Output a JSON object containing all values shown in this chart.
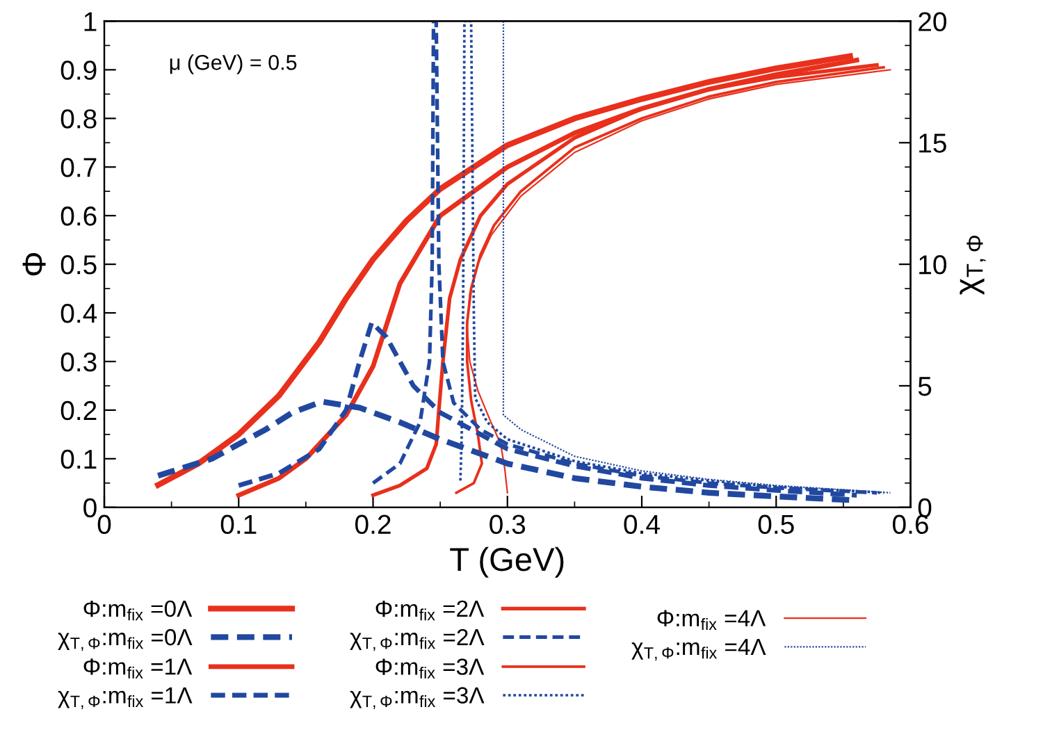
{
  "chart_data": {
    "type": "line",
    "xlabel": "T (GeV)",
    "ylabel": "Φ",
    "y2label": "χ$_{T,Φ}$",
    "annotations": [
      "μ (GeV) = 0.5"
    ],
    "xlim": [
      0,
      0.6
    ],
    "xticks": [
      0,
      0.1,
      0.2,
      0.3,
      0.4,
      0.5,
      0.6
    ],
    "ylim": [
      0,
      1
    ],
    "yticks": [
      0,
      0.1,
      0.2,
      0.3,
      0.4,
      0.5,
      0.6,
      0.7,
      0.8,
      0.9,
      1
    ],
    "y2lim": [
      0,
      20
    ],
    "y2ticks": [
      0,
      5,
      10,
      15,
      20
    ],
    "grid": false,
    "legend": "bottom",
    "series": [
      {
        "name": "Φ:m$_{fix}$ =0Λ",
        "color": "#e8301c",
        "line_style": "solid",
        "x": [
          0.04,
          0.07,
          0.1,
          0.13,
          0.16,
          0.18,
          0.2,
          0.225,
          0.25,
          0.3,
          0.35,
          0.4,
          0.45,
          0.5,
          0.555
        ],
        "values": [
          0.046,
          0.09,
          0.15,
          0.23,
          0.34,
          0.43,
          0.51,
          0.59,
          0.655,
          0.745,
          0.8,
          0.84,
          0.875,
          0.903,
          0.928
        ]
      },
      {
        "name": "χ$_{T,Φ}$:m$_{fix}$ =0Λ",
        "color": "#2148a0",
        "line_style": "dashed",
        "axis": "y2",
        "x": [
          0.04,
          0.08,
          0.12,
          0.14,
          0.162,
          0.19,
          0.22,
          0.25,
          0.3,
          0.35,
          0.4,
          0.45,
          0.5,
          0.555
        ],
        "values": [
          1.3,
          2.0,
          3.2,
          3.9,
          4.35,
          4.1,
          3.5,
          2.8,
          1.8,
          1.2,
          0.85,
          0.6,
          0.45,
          0.3
        ]
      },
      {
        "name": "Φ:m$_{fix}$ =1Λ",
        "color": "#e8301c",
        "line_style": "solid",
        "x": [
          0.1,
          0.13,
          0.15,
          0.18,
          0.2,
          0.22,
          0.25,
          0.3,
          0.35,
          0.4,
          0.45,
          0.5,
          0.56
        ],
        "values": [
          0.025,
          0.06,
          0.1,
          0.19,
          0.29,
          0.46,
          0.6,
          0.7,
          0.77,
          0.82,
          0.86,
          0.89,
          0.92
        ]
      },
      {
        "name": "χ$_{T,Φ}$:m$_{fix}$ =1Λ",
        "color": "#2148a0",
        "line_style": "dashed",
        "axis": "y2",
        "x": [
          0.1,
          0.13,
          0.16,
          0.18,
          0.19,
          0.199,
          0.21,
          0.23,
          0.25,
          0.3,
          0.35,
          0.4,
          0.45,
          0.5,
          0.56
        ],
        "values": [
          0.9,
          1.4,
          2.4,
          4.0,
          6.0,
          7.6,
          7.0,
          5.0,
          3.9,
          2.4,
          1.7,
          1.2,
          0.9,
          0.7,
          0.5
        ]
      },
      {
        "name": "Φ:m$_{fix}$ =2Λ",
        "color": "#e8301c",
        "line_style": "solid",
        "x": [
          0.2,
          0.22,
          0.24,
          0.247,
          0.249,
          0.252,
          0.257,
          0.265,
          0.28,
          0.3,
          0.35,
          0.4,
          0.45,
          0.5,
          0.575
        ],
        "values": [
          0.025,
          0.045,
          0.08,
          0.13,
          0.2,
          0.3,
          0.43,
          0.51,
          0.6,
          0.665,
          0.76,
          0.82,
          0.86,
          0.885,
          0.91
        ]
      },
      {
        "name": "χ$_{T,Φ}$:m$_{fix}$ =2Λ",
        "color": "#2148a0",
        "line_style": "dashed",
        "axis": "y2",
        "x": [
          0.2,
          0.22,
          0.235,
          0.242,
          0.244,
          0.245,
          0.247,
          0.249,
          0.252,
          0.26,
          0.28,
          0.3,
          0.35,
          0.4,
          0.45,
          0.5,
          0.575
        ],
        "values": [
          1.0,
          1.8,
          3.5,
          6,
          10,
          20,
          20,
          10,
          6,
          4.3,
          3.2,
          2.6,
          1.8,
          1.3,
          1.0,
          0.8,
          0.6
        ]
      },
      {
        "name": "Φ:m$_{fix}$ =3Λ",
        "color": "#e8301c",
        "line_style": "solid",
        "x": [
          0.262,
          0.275,
          0.281,
          0.278,
          0.273,
          0.27,
          0.27,
          0.273,
          0.28,
          0.29,
          0.31,
          0.35,
          0.4,
          0.45,
          0.5,
          0.58
        ],
        "values": [
          0.03,
          0.05,
          0.09,
          0.15,
          0.22,
          0.3,
          0.38,
          0.45,
          0.52,
          0.58,
          0.65,
          0.74,
          0.8,
          0.845,
          0.875,
          0.905
        ]
      },
      {
        "name": "χ$_{T,Φ}$:m$_{fix}$ =3Λ",
        "color": "#2148a0",
        "line_style": "dotted",
        "axis": "y2",
        "x": [
          0.265,
          0.266,
          0.267,
          0.268,
          0.273,
          0.275,
          0.276,
          0.285,
          0.3,
          0.35,
          0.4,
          0.45,
          0.5,
          0.58
        ],
        "values": [
          1.1,
          3,
          8,
          20,
          20,
          8,
          4.5,
          3.5,
          2.8,
          1.9,
          1.4,
          1.1,
          0.85,
          0.6
        ]
      },
      {
        "name": "Φ:m$_{fix}$ =4Λ",
        "color": "#e8301c",
        "line_style": "solid",
        "x": [
          0.3,
          0.298,
          0.295,
          0.287,
          0.278,
          0.272,
          0.27,
          0.272,
          0.278,
          0.288,
          0.31,
          0.35,
          0.4,
          0.45,
          0.5,
          0.585
        ],
        "values": [
          0.03,
          0.08,
          0.13,
          0.18,
          0.24,
          0.3,
          0.37,
          0.44,
          0.5,
          0.56,
          0.64,
          0.73,
          0.795,
          0.84,
          0.87,
          0.9
        ]
      },
      {
        "name": "χ$_{T,Φ}$:m$_{fix}$ =4Λ",
        "color": "#2148a0",
        "line_style": "dotted",
        "axis": "y2",
        "x": [
          0.297,
          0.297,
          0.31,
          0.35,
          0.4,
          0.45,
          0.5,
          0.585
        ],
        "values": [
          20,
          3.8,
          3.2,
          2.1,
          1.5,
          1.15,
          0.9,
          0.6
        ]
      }
    ]
  }
}
